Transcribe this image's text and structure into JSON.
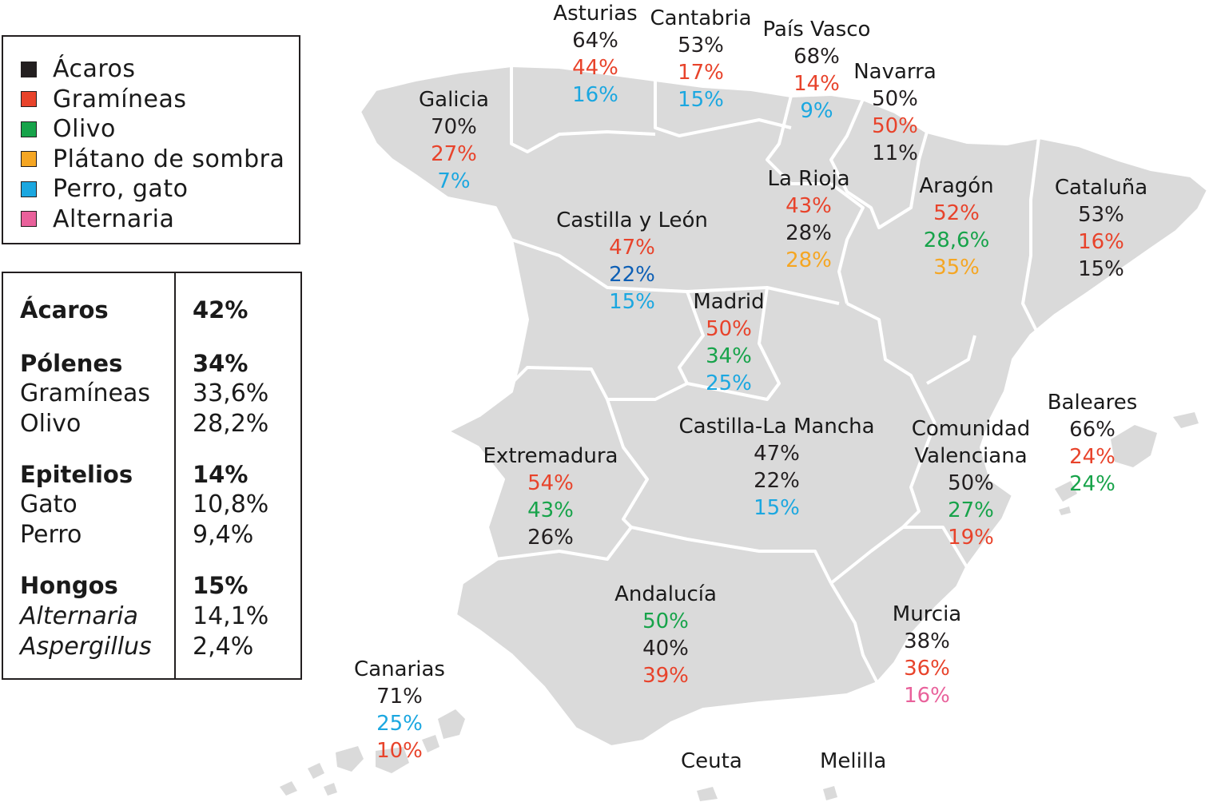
{
  "colors": {
    "acaros": "#231f20",
    "gramineas": "#e8432b",
    "olivo": "#17a34a",
    "platano": "#f5a623",
    "perro_gato": "#1ba7e0",
    "alternaria": "#e9619b",
    "dark_blue": "#0d5fb5",
    "land": "#dadada",
    "border": "#ffffff"
  },
  "legend": [
    {
      "label": "Ácaros",
      "color": "#231f20"
    },
    {
      "label": "Gramíneas",
      "color": "#e8432b"
    },
    {
      "label": "Olivo",
      "color": "#17a34a"
    },
    {
      "label": "Plátano de sombra",
      "color": "#f5a623"
    },
    {
      "label": "Perro, gato",
      "color": "#1ba7e0"
    },
    {
      "label": "Alternaria",
      "color": "#e9619b"
    }
  ],
  "summary": [
    {
      "label": "Ácaros",
      "value": "42%",
      "style": "bold"
    },
    {
      "label": "Pólenes",
      "value": "34%",
      "style": "bold"
    },
    {
      "label": "Gramíneas",
      "value": "33,6%",
      "style": "normal"
    },
    {
      "label": "Olivo",
      "value": "28,2%",
      "style": "normal"
    },
    {
      "label": "Epitelios",
      "value": "14%",
      "style": "bold"
    },
    {
      "label": "Gato",
      "value": "10,8%",
      "style": "normal"
    },
    {
      "label": "Perro",
      "value": "9,4%",
      "style": "normal"
    },
    {
      "label": "Hongos",
      "value": "15%",
      "style": "bold"
    },
    {
      "label": "Alternaria",
      "value": "14,1%",
      "style": "italic"
    },
    {
      "label": "Aspergillus",
      "value": "2,4%",
      "style": "italic"
    }
  ],
  "regions": [
    {
      "name": "Asturias",
      "values": [
        {
          "v": "64%",
          "c": "#231f20"
        },
        {
          "v": "44%",
          "c": "#e8432b"
        },
        {
          "v": "16%",
          "c": "#1ba7e0"
        }
      ]
    },
    {
      "name": "Cantabria",
      "values": [
        {
          "v": "53%",
          "c": "#231f20"
        },
        {
          "v": "17%",
          "c": "#e8432b"
        },
        {
          "v": "15%",
          "c": "#1ba7e0"
        }
      ]
    },
    {
      "name": "País Vasco",
      "values": [
        {
          "v": "68%",
          "c": "#231f20"
        },
        {
          "v": "14%",
          "c": "#e8432b"
        },
        {
          "v": "9%",
          "c": "#1ba7e0"
        }
      ]
    },
    {
      "name": "Navarra",
      "values": [
        {
          "v": "50%",
          "c": "#231f20"
        },
        {
          "v": "50%",
          "c": "#e8432b"
        },
        {
          "v": "11%",
          "c": "#231f20"
        }
      ]
    },
    {
      "name": "Galicia",
      "values": [
        {
          "v": "70%",
          "c": "#231f20"
        },
        {
          "v": "27%",
          "c": "#e8432b"
        },
        {
          "v": "7%",
          "c": "#1ba7e0"
        }
      ]
    },
    {
      "name": "La Rioja",
      "values": [
        {
          "v": "43%",
          "c": "#e8432b"
        },
        {
          "v": "28%",
          "c": "#231f20"
        },
        {
          "v": "28%",
          "c": "#f5a623"
        }
      ]
    },
    {
      "name": "Aragón",
      "values": [
        {
          "v": "52%",
          "c": "#e8432b"
        },
        {
          "v": "28,6%",
          "c": "#17a34a"
        },
        {
          "v": "35%",
          "c": "#f5a623"
        }
      ]
    },
    {
      "name": "Cataluña",
      "values": [
        {
          "v": "53%",
          "c": "#231f20"
        },
        {
          "v": "16%",
          "c": "#e8432b"
        },
        {
          "v": "15%",
          "c": "#231f20"
        }
      ]
    },
    {
      "name": "Castilla y León",
      "values": [
        {
          "v": "47%",
          "c": "#e8432b"
        },
        {
          "v": "22%",
          "c": "#0d5fb5"
        },
        {
          "v": "15%",
          "c": "#1ba7e0"
        }
      ]
    },
    {
      "name": "Madrid",
      "values": [
        {
          "v": "50%",
          "c": "#e8432b"
        },
        {
          "v": "34%",
          "c": "#17a34a"
        },
        {
          "v": "25%",
          "c": "#1ba7e0"
        }
      ]
    },
    {
      "name": "Castilla-La Mancha",
      "values": [
        {
          "v": "47%",
          "c": "#231f20"
        },
        {
          "v": "22%",
          "c": "#231f20"
        },
        {
          "v": "15%",
          "c": "#1ba7e0"
        }
      ]
    },
    {
      "name": "Extremadura",
      "values": [
        {
          "v": "54%",
          "c": "#e8432b"
        },
        {
          "v": "43%",
          "c": "#17a34a"
        },
        {
          "v": "26%",
          "c": "#231f20"
        }
      ]
    },
    {
      "name": "Comunidad Valenciana",
      "name2": "Valenciana",
      "values": [
        {
          "v": "50%",
          "c": "#231f20"
        },
        {
          "v": "27%",
          "c": "#17a34a"
        },
        {
          "v": "19%",
          "c": "#e8432b"
        }
      ]
    },
    {
      "name": "Baleares",
      "values": [
        {
          "v": "66%",
          "c": "#231f20"
        },
        {
          "v": "24%",
          "c": "#e8432b"
        },
        {
          "v": "24%",
          "c": "#17a34a"
        }
      ]
    },
    {
      "name": "Andalucía",
      "values": [
        {
          "v": "50%",
          "c": "#17a34a"
        },
        {
          "v": "40%",
          "c": "#231f20"
        },
        {
          "v": "39%",
          "c": "#e8432b"
        }
      ]
    },
    {
      "name": "Murcia",
      "values": [
        {
          "v": "38%",
          "c": "#231f20"
        },
        {
          "v": "36%",
          "c": "#e8432b"
        },
        {
          "v": "16%",
          "c": "#e9619b"
        }
      ]
    },
    {
      "name": "Canarias",
      "values": [
        {
          "v": "71%",
          "c": "#231f20"
        },
        {
          "v": "25%",
          "c": "#1ba7e0"
        },
        {
          "v": "10%",
          "c": "#e8432b"
        }
      ]
    }
  ],
  "places": [
    "Ceuta",
    "Melilla"
  ]
}
